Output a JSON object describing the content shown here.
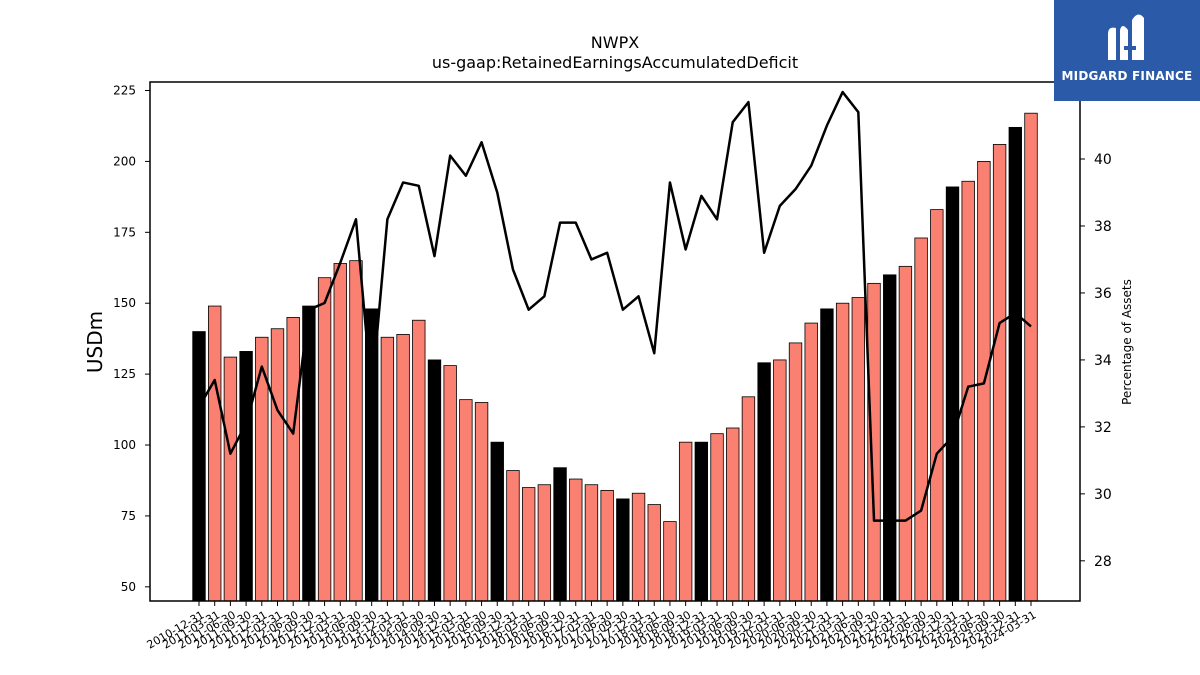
{
  "chart_data": {
    "type": "bar",
    "title": "NWPX",
    "subtitle": "us-gaap:RetainedEarningsAccumulatedDeficit",
    "ylabel": "USDm",
    "y2label": "Percentage of Assets",
    "ylim": [
      45,
      228
    ],
    "y2lim": [
      26.8,
      42.3
    ],
    "yticks": [
      50,
      75,
      100,
      125,
      150,
      175,
      200,
      225
    ],
    "y2ticks": [
      28,
      30,
      32,
      34,
      36,
      38,
      40,
      42
    ],
    "categories": [
      "2010-12-31",
      "2011-03-31",
      "2011-06-30",
      "2011-09-30",
      "2011-12-31",
      "2012-03-31",
      "2012-06-30",
      "2012-09-30",
      "2012-12-31",
      "2013-03-31",
      "2013-06-30",
      "2013-09-30",
      "2013-12-31",
      "2014-03-31",
      "2014-06-30",
      "2014-09-30",
      "2014-12-31",
      "2015-03-31",
      "2015-06-30",
      "2015-09-30",
      "2015-12-31",
      "2016-03-31",
      "2016-06-30",
      "2016-09-30",
      "2016-12-31",
      "2017-03-31",
      "2017-06-30",
      "2017-09-30",
      "2017-12-31",
      "2018-03-31",
      "2018-06-30",
      "2018-09-30",
      "2018-12-31",
      "2019-03-31",
      "2019-06-30",
      "2019-09-30",
      "2019-12-31",
      "2020-03-31",
      "2020-06-30",
      "2020-09-30",
      "2020-12-31",
      "2021-03-31",
      "2021-06-30",
      "2021-09-30",
      "2021-12-31",
      "2022-03-31",
      "2022-06-30",
      "2022-09-30",
      "2022-12-31",
      "2023-03-31",
      "2023-06-30",
      "2023-09-30",
      "2023-12-31",
      "2024-03-31"
    ],
    "series": [
      {
        "type": "bar",
        "values": [
          140,
          149,
          131,
          133,
          138,
          141,
          145,
          149,
          159,
          164,
          165,
          148,
          138,
          139,
          144,
          130,
          128,
          116,
          115,
          101,
          91,
          85,
          86,
          92,
          88,
          86,
          84,
          81,
          83,
          79,
          73,
          101,
          101,
          104,
          106,
          117,
          129,
          130,
          136,
          143,
          148,
          150,
          152,
          157,
          160,
          163,
          173,
          183,
          191,
          193,
          200,
          206,
          212,
          217
        ],
        "highlight": [
          true,
          false,
          false,
          true,
          false,
          false,
          false,
          true,
          false,
          false,
          false,
          true,
          false,
          false,
          false,
          true,
          false,
          false,
          false,
          true,
          false,
          false,
          false,
          true,
          false,
          false,
          false,
          true,
          false,
          false,
          false,
          false,
          true,
          false,
          false,
          false,
          true,
          false,
          false,
          false,
          true,
          false,
          false,
          false,
          true,
          false,
          false,
          false,
          true,
          false,
          false,
          false,
          true,
          false
        ]
      },
      {
        "type": "line",
        "axis": "right",
        "values": [
          32.6,
          33.4,
          31.2,
          32.1,
          33.8,
          32.5,
          31.8,
          35.5,
          35.7,
          36.9,
          38.2,
          33.0,
          38.2,
          39.3,
          39.2,
          37.1,
          40.1,
          39.5,
          40.5,
          39.0,
          36.7,
          35.5,
          35.9,
          38.1,
          38.1,
          37.0,
          37.2,
          35.5,
          35.9,
          34.2,
          39.3,
          37.3,
          38.9,
          38.2,
          41.1,
          41.7,
          37.2,
          38.6,
          39.1,
          39.8,
          41.0,
          42.0,
          41.4,
          29.2,
          29.2,
          29.2,
          29.5,
          31.2,
          31.7,
          33.2,
          33.3,
          35.1,
          35.4,
          35.0
        ]
      }
    ],
    "colors": {
      "bar": "#fa8072",
      "bar_highlight": "#000000",
      "line": "#000000"
    }
  },
  "logo": {
    "text": "MIDGARD FINANCE"
  }
}
